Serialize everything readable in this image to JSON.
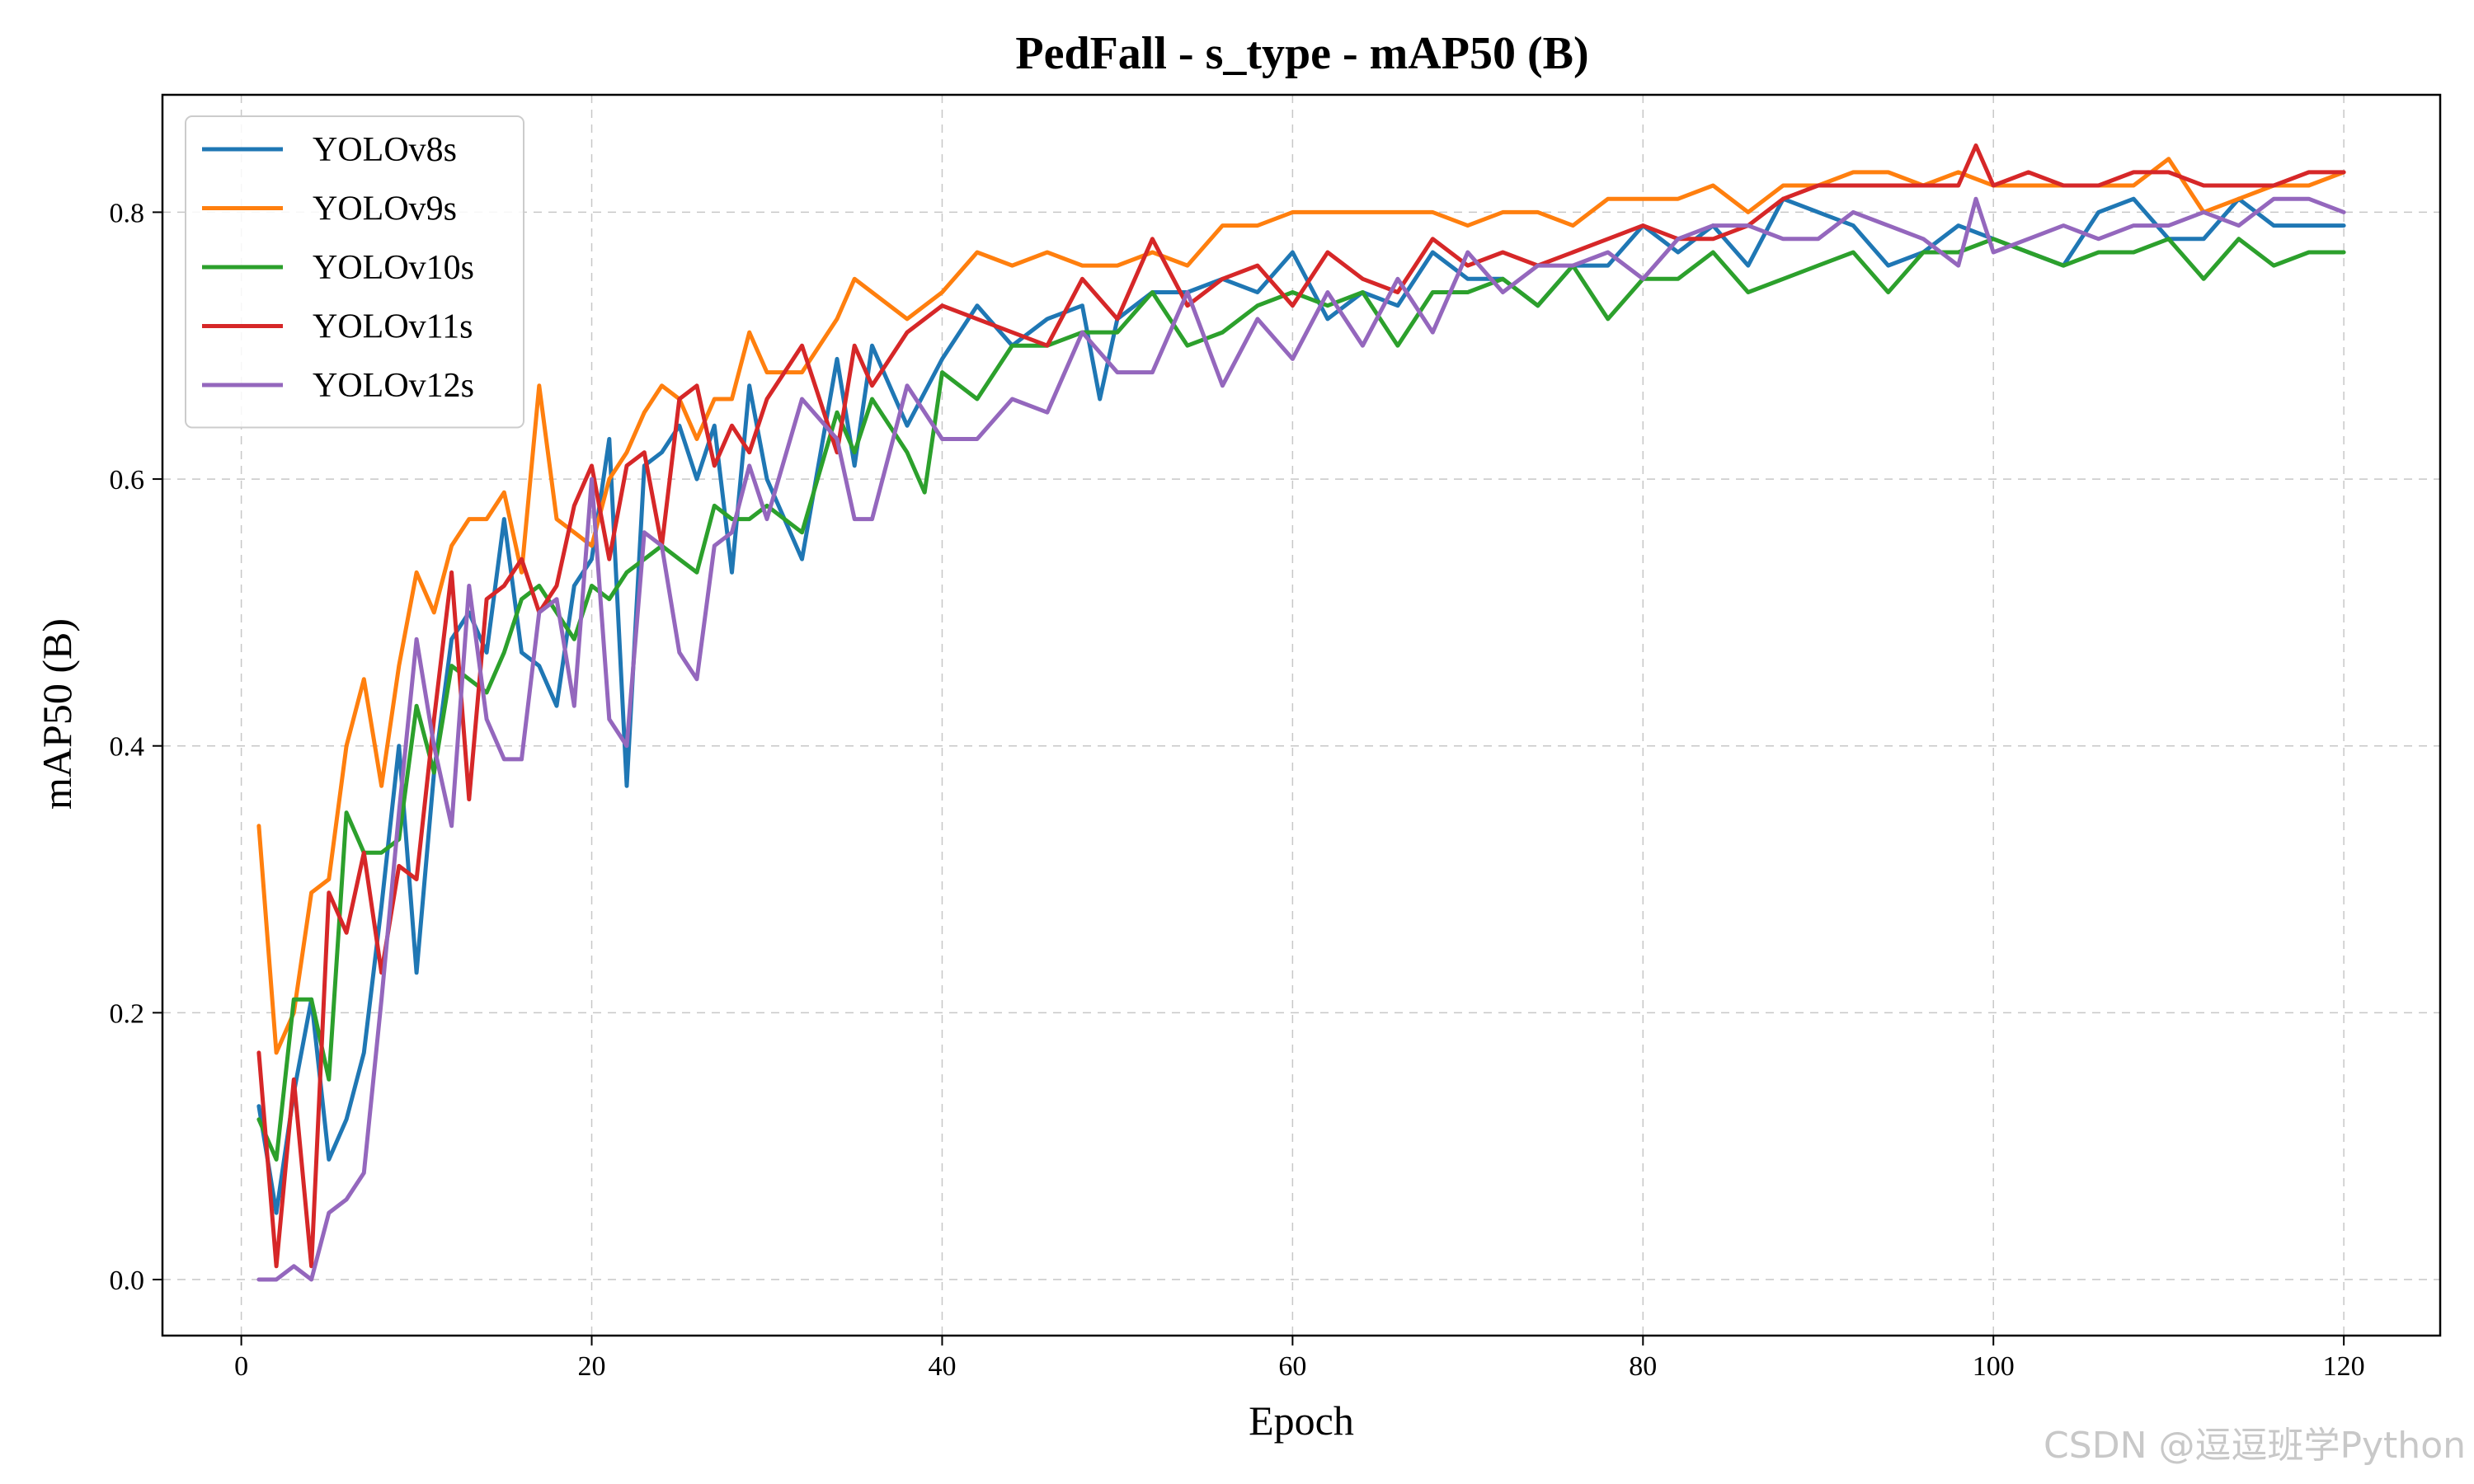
{
  "chart_data": {
    "type": "line",
    "title": "PedFall - s_type - mAP50 (B)",
    "xlabel": "Epoch",
    "ylabel": "mAP50 (B)",
    "xlim": [
      -4.5,
      125.5
    ],
    "ylim": [
      -0.042,
      0.888
    ],
    "xticks": [
      0,
      20,
      40,
      60,
      80,
      100,
      120
    ],
    "yticks": [
      0.0,
      0.2,
      0.4,
      0.6,
      0.8
    ],
    "xtick_labels": [
      "0",
      "20",
      "40",
      "60",
      "80",
      "100",
      "120"
    ],
    "ytick_labels": [
      "0.0",
      "0.2",
      "0.4",
      "0.6",
      "0.8"
    ],
    "grid": true,
    "legend_position": "top-left",
    "series": [
      {
        "name": "YOLOv8s",
        "color": "#1f77b4",
        "x": [
          1,
          2,
          3,
          4,
          5,
          6,
          7,
          8,
          9,
          10,
          11,
          12,
          13,
          14,
          15,
          16,
          17,
          18,
          19,
          20,
          21,
          22,
          23,
          24,
          25,
          26,
          27,
          28,
          29,
          30,
          32,
          34,
          35,
          36,
          38,
          40,
          42,
          44,
          46,
          48,
          49,
          50,
          52,
          54,
          56,
          58,
          60,
          62,
          64,
          66,
          68,
          70,
          72,
          74,
          76,
          78,
          80,
          82,
          84,
          86,
          88,
          90,
          92,
          94,
          96,
          98,
          100,
          102,
          104,
          106,
          108,
          110,
          112,
          114,
          116,
          118,
          120
        ],
        "values": [
          0.13,
          0.05,
          0.14,
          0.21,
          0.09,
          0.12,
          0.17,
          0.28,
          0.4,
          0.23,
          0.38,
          0.48,
          0.5,
          0.47,
          0.57,
          0.47,
          0.46,
          0.43,
          0.52,
          0.54,
          0.63,
          0.37,
          0.61,
          0.62,
          0.64,
          0.6,
          0.64,
          0.53,
          0.67,
          0.6,
          0.54,
          0.69,
          0.61,
          0.7,
          0.64,
          0.69,
          0.73,
          0.7,
          0.72,
          0.73,
          0.66,
          0.72,
          0.74,
          0.74,
          0.75,
          0.74,
          0.77,
          0.72,
          0.74,
          0.73,
          0.77,
          0.75,
          0.75,
          0.73,
          0.76,
          0.76,
          0.79,
          0.77,
          0.79,
          0.76,
          0.81,
          0.8,
          0.79,
          0.76,
          0.77,
          0.79,
          0.78,
          0.77,
          0.76,
          0.8,
          0.81,
          0.78,
          0.78,
          0.81,
          0.79,
          0.79,
          0.79
        ]
      },
      {
        "name": "YOLOv9s",
        "color": "#ff7f0e",
        "x": [
          1,
          2,
          3,
          4,
          5,
          6,
          7,
          8,
          9,
          10,
          11,
          12,
          13,
          14,
          15,
          16,
          17,
          18,
          19,
          20,
          21,
          22,
          23,
          24,
          25,
          26,
          27,
          28,
          29,
          30,
          32,
          34,
          35,
          36,
          38,
          40,
          42,
          44,
          46,
          48,
          50,
          52,
          54,
          56,
          58,
          60,
          62,
          64,
          66,
          68,
          70,
          72,
          74,
          76,
          78,
          80,
          82,
          84,
          86,
          88,
          90,
          92,
          94,
          96,
          98,
          100,
          102,
          104,
          106,
          108,
          110,
          112,
          114,
          116,
          118,
          120
        ],
        "values": [
          0.34,
          0.17,
          0.2,
          0.29,
          0.3,
          0.4,
          0.45,
          0.37,
          0.46,
          0.53,
          0.5,
          0.55,
          0.57,
          0.57,
          0.59,
          0.53,
          0.67,
          0.57,
          0.56,
          0.55,
          0.6,
          0.62,
          0.65,
          0.67,
          0.66,
          0.63,
          0.66,
          0.66,
          0.71,
          0.68,
          0.68,
          0.72,
          0.75,
          0.74,
          0.72,
          0.74,
          0.77,
          0.76,
          0.77,
          0.76,
          0.76,
          0.77,
          0.76,
          0.79,
          0.79,
          0.8,
          0.8,
          0.8,
          0.8,
          0.8,
          0.79,
          0.8,
          0.8,
          0.79,
          0.81,
          0.81,
          0.81,
          0.82,
          0.8,
          0.82,
          0.82,
          0.83,
          0.83,
          0.82,
          0.83,
          0.82,
          0.82,
          0.82,
          0.82,
          0.82,
          0.84,
          0.8,
          0.81,
          0.82,
          0.82,
          0.83
        ]
      },
      {
        "name": "YOLOv10s",
        "color": "#2ca02c",
        "x": [
          1,
          2,
          3,
          4,
          5,
          6,
          7,
          8,
          9,
          10,
          11,
          12,
          13,
          14,
          15,
          16,
          17,
          18,
          19,
          20,
          21,
          22,
          23,
          24,
          25,
          26,
          27,
          28,
          29,
          30,
          32,
          34,
          35,
          36,
          38,
          39,
          40,
          42,
          44,
          46,
          48,
          50,
          52,
          54,
          56,
          58,
          60,
          62,
          64,
          66,
          68,
          70,
          72,
          74,
          76,
          78,
          80,
          82,
          84,
          86,
          88,
          90,
          92,
          94,
          96,
          98,
          100,
          102,
          104,
          106,
          108,
          110,
          112,
          114,
          116,
          118,
          120
        ],
        "values": [
          0.12,
          0.09,
          0.21,
          0.21,
          0.15,
          0.35,
          0.32,
          0.32,
          0.33,
          0.43,
          0.38,
          0.46,
          0.45,
          0.44,
          0.47,
          0.51,
          0.52,
          0.5,
          0.48,
          0.52,
          0.51,
          0.53,
          0.54,
          0.55,
          0.54,
          0.53,
          0.58,
          0.57,
          0.57,
          0.58,
          0.56,
          0.65,
          0.62,
          0.66,
          0.62,
          0.59,
          0.68,
          0.66,
          0.7,
          0.7,
          0.71,
          0.71,
          0.74,
          0.7,
          0.71,
          0.73,
          0.74,
          0.73,
          0.74,
          0.7,
          0.74,
          0.74,
          0.75,
          0.73,
          0.76,
          0.72,
          0.75,
          0.75,
          0.77,
          0.74,
          0.75,
          0.76,
          0.77,
          0.74,
          0.77,
          0.77,
          0.78,
          0.77,
          0.76,
          0.77,
          0.77,
          0.78,
          0.75,
          0.78,
          0.76,
          0.77,
          0.77
        ]
      },
      {
        "name": "YOLOv11s",
        "color": "#d62728",
        "x": [
          1,
          2,
          3,
          4,
          5,
          6,
          7,
          8,
          9,
          10,
          11,
          12,
          13,
          14,
          15,
          16,
          17,
          18,
          19,
          20,
          21,
          22,
          23,
          24,
          25,
          26,
          27,
          28,
          29,
          30,
          32,
          34,
          35,
          36,
          38,
          40,
          42,
          44,
          46,
          48,
          50,
          52,
          54,
          56,
          58,
          60,
          62,
          64,
          66,
          68,
          70,
          72,
          74,
          76,
          78,
          80,
          82,
          84,
          86,
          88,
          90,
          92,
          94,
          96,
          98,
          99,
          100,
          102,
          104,
          106,
          108,
          110,
          112,
          114,
          116,
          118,
          120
        ],
        "values": [
          0.17,
          0.01,
          0.15,
          0.01,
          0.29,
          0.26,
          0.32,
          0.23,
          0.31,
          0.3,
          0.42,
          0.53,
          0.36,
          0.51,
          0.52,
          0.54,
          0.5,
          0.52,
          0.58,
          0.61,
          0.54,
          0.61,
          0.62,
          0.55,
          0.66,
          0.67,
          0.61,
          0.64,
          0.62,
          0.66,
          0.7,
          0.62,
          0.7,
          0.67,
          0.71,
          0.73,
          0.72,
          0.71,
          0.7,
          0.75,
          0.72,
          0.78,
          0.73,
          0.75,
          0.76,
          0.73,
          0.77,
          0.75,
          0.74,
          0.78,
          0.76,
          0.77,
          0.76,
          0.77,
          0.78,
          0.79,
          0.78,
          0.78,
          0.79,
          0.81,
          0.82,
          0.82,
          0.82,
          0.82,
          0.82,
          0.85,
          0.82,
          0.83,
          0.82,
          0.82,
          0.83,
          0.83,
          0.82,
          0.82,
          0.82,
          0.83,
          0.83
        ]
      },
      {
        "name": "YOLOv12s",
        "color": "#9467bd",
        "x": [
          1,
          2,
          3,
          4,
          5,
          6,
          7,
          8,
          9,
          10,
          11,
          12,
          13,
          14,
          15,
          16,
          17,
          18,
          19,
          20,
          21,
          22,
          23,
          24,
          25,
          26,
          27,
          28,
          29,
          30,
          32,
          34,
          35,
          36,
          38,
          40,
          42,
          44,
          46,
          48,
          50,
          52,
          54,
          56,
          58,
          60,
          62,
          64,
          66,
          68,
          70,
          72,
          74,
          76,
          78,
          80,
          82,
          84,
          86,
          88,
          90,
          92,
          94,
          96,
          98,
          99,
          100,
          102,
          104,
          106,
          108,
          110,
          112,
          114,
          116,
          118,
          120
        ],
        "values": [
          0.0,
          0.0,
          0.01,
          0.0,
          0.05,
          0.06,
          0.08,
          0.21,
          0.35,
          0.48,
          0.4,
          0.34,
          0.52,
          0.42,
          0.39,
          0.39,
          0.5,
          0.51,
          0.43,
          0.6,
          0.42,
          0.4,
          0.56,
          0.55,
          0.47,
          0.45,
          0.55,
          0.56,
          0.61,
          0.57,
          0.66,
          0.63,
          0.57,
          0.57,
          0.67,
          0.63,
          0.63,
          0.66,
          0.65,
          0.71,
          0.68,
          0.68,
          0.74,
          0.67,
          0.72,
          0.69,
          0.74,
          0.7,
          0.75,
          0.71,
          0.77,
          0.74,
          0.76,
          0.76,
          0.77,
          0.75,
          0.78,
          0.79,
          0.79,
          0.78,
          0.78,
          0.8,
          0.79,
          0.78,
          0.76,
          0.81,
          0.77,
          0.78,
          0.79,
          0.78,
          0.79,
          0.79,
          0.8,
          0.79,
          0.81,
          0.81,
          0.8
        ]
      }
    ]
  },
  "watermark": "CSDN @逗逗班学Python"
}
